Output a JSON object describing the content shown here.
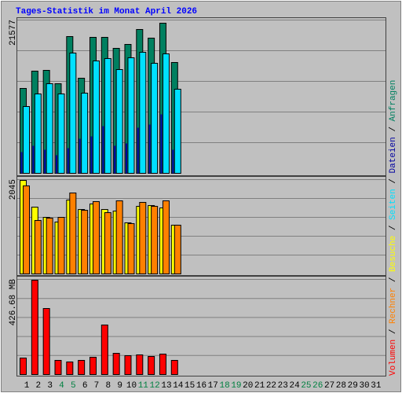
{
  "title": "Tages-Statistik im Monat April 2026",
  "legend_separator": " / ",
  "chart_data": [
    {
      "type": "bar",
      "ylim": [
        0,
        21577
      ],
      "yticks": [
        21577
      ],
      "series": [
        {
          "name": "Anfragen",
          "color": "#008060",
          "values": [
            11950,
            14385,
            14495,
            12614,
            19253,
            13389,
            19142,
            19142,
            17593,
            18147,
            20249,
            19032,
            21134,
            15602,
            null,
            null,
            null,
            null,
            null,
            null,
            null,
            null,
            null,
            null,
            null,
            null,
            null,
            null,
            null,
            null,
            null
          ]
        },
        {
          "name": "Seiten",
          "color": "#00e0ff",
          "values": [
            9405,
            11176,
            12614,
            11176,
            16930,
            11286,
            15823,
            16155,
            14606,
            16266,
            17040,
            15491,
            16819,
            11840,
            null,
            null,
            null,
            null,
            null,
            null,
            null,
            null,
            null,
            null,
            null,
            null,
            null,
            null,
            null,
            null,
            null
          ]
        },
        {
          "name": "Dateien",
          "color": "#0000a0",
          "values": [
            2988,
            3873,
            3320,
            2545,
            3541,
            4869,
            5201,
            6639,
            3873,
            4205,
            6418,
            6860,
            8299,
            3320,
            null,
            null,
            null,
            null,
            null,
            null,
            null,
            null,
            null,
            null,
            null,
            null,
            null,
            null,
            null,
            null,
            null
          ]
        }
      ]
    },
    {
      "type": "bar",
      "ylim": [
        0,
        2045
      ],
      "yticks": [
        2045
      ],
      "series": [
        {
          "name": "Besuche",
          "color": "#ffff00",
          "values": [
            2028,
            1448,
            1227,
            1125,
            1602,
            1397,
            1517,
            1397,
            1363,
            1108,
            1466,
            1483,
            1431,
            1057,
            null,
            null,
            null,
            null,
            null,
            null,
            null,
            null,
            null,
            null,
            null,
            null,
            null,
            null,
            null,
            null,
            null
          ]
        },
        {
          "name": "Rechner",
          "color": "#ff8000",
          "values": [
            1909,
            1159,
            1210,
            1227,
            1755,
            1380,
            1568,
            1329,
            1585,
            1091,
            1551,
            1466,
            1585,
            1057,
            null,
            null,
            null,
            null,
            null,
            null,
            null,
            null,
            null,
            null,
            null,
            null,
            null,
            null,
            null,
            null,
            null
          ]
        }
      ]
    },
    {
      "type": "bar",
      "ylim": [
        0,
        426.68
      ],
      "yticks": [
        {
          "value": 426.68,
          "label": "426.68 MB"
        }
      ],
      "categories": [
        "1",
        "2",
        "3",
        "4",
        "5",
        "6",
        "7",
        "8",
        "9",
        "10",
        "11",
        "12",
        "13",
        "14",
        "15",
        "16",
        "17",
        "18",
        "19",
        "20",
        "21",
        "22",
        "23",
        "24",
        "25",
        "26",
        "27",
        "28",
        "29",
        "30",
        "31"
      ],
      "category_colors": [
        "#000000",
        "#000000",
        "#000000",
        "#008040",
        "#008040",
        "#000000",
        "#000000",
        "#000000",
        "#000000",
        "#000000",
        "#008040",
        "#008040",
        "#000000",
        "#000000",
        "#000000",
        "#000000",
        "#000000",
        "#008040",
        "#008040",
        "#000000",
        "#000000",
        "#000000",
        "#000000",
        "#000000",
        "#008040",
        "#008040",
        "#000000",
        "#000000",
        "#000000",
        "#000000",
        "#000000"
      ],
      "series": [
        {
          "name": "Volumen",
          "color": "#ff0000",
          "values": [
            74.0,
            423.1,
            296.2,
            63.5,
            56.4,
            63.5,
            77.6,
            222.2,
            95.2,
            84.6,
            88.2,
            81.1,
            91.7,
            63.5,
            null,
            null,
            null,
            null,
            null,
            null,
            null,
            null,
            null,
            null,
            null,
            null,
            null,
            null,
            null,
            null,
            null
          ]
        }
      ]
    }
  ]
}
